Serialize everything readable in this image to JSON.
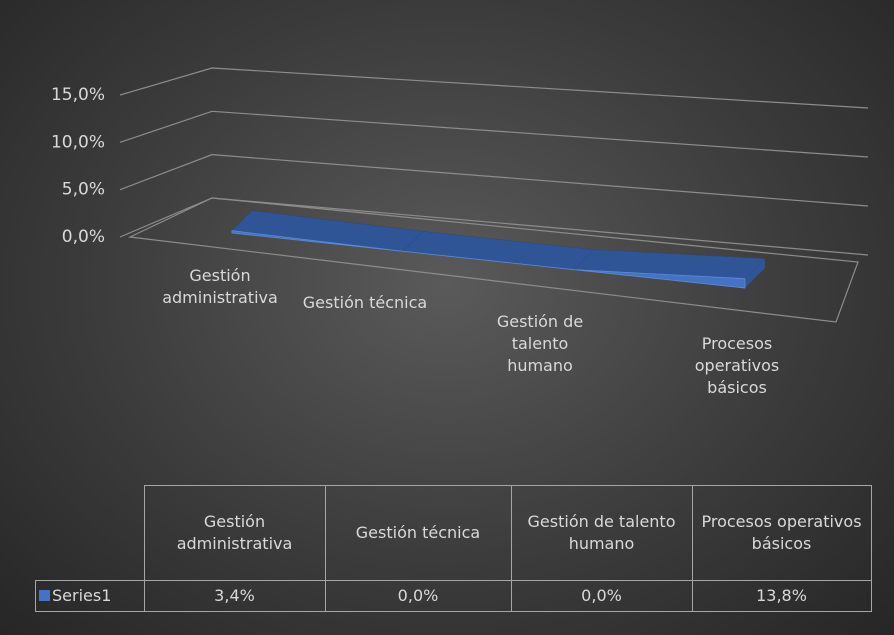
{
  "chart_data": {
    "type": "area3d",
    "categories": [
      "Gestión administrativa",
      "Gestión técnica",
      "Gestión de talento humano",
      "Procesos operativos básicos"
    ],
    "series": [
      {
        "name": "Series1",
        "color": "#4472c4",
        "values": [
          3.4,
          0,
          0,
          13.8
        ],
        "value_labels": [
          "3,4%",
          "0,0%",
          "0,0%",
          "13,8%"
        ]
      }
    ],
    "ylim": [
      0,
      15
    ],
    "yticks": [
      {
        "value": 0,
        "label": "0,0%"
      },
      {
        "value": 5,
        "label": "5,0%"
      },
      {
        "value": 10,
        "label": "10,0%"
      },
      {
        "value": 15,
        "label": "15,0%"
      }
    ],
    "grid": true,
    "data_table": true
  }
}
